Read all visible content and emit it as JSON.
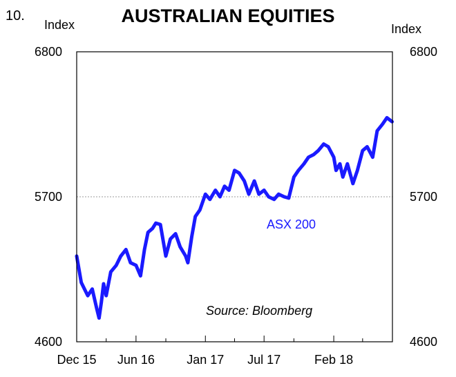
{
  "figure": {
    "number": "10.",
    "title": "AUSTRALIAN EQUITIES",
    "unit_left": "Index",
    "unit_right": "Index",
    "source": "Source: Bloomberg"
  },
  "colors": {
    "series": "#1a1aff",
    "axis": "#000000",
    "gridline": "#9a9a9a"
  },
  "chart_data": {
    "type": "line",
    "title": "AUSTRALIAN EQUITIES",
    "ylabel": "Index",
    "ylim": [
      4600,
      6800
    ],
    "yticks": [
      4600,
      5700,
      6800
    ],
    "xlim": [
      "2015-12-01",
      "2018-08-01"
    ],
    "xtick_labels": [
      "Dec 15",
      "Jun 16",
      "Jan 17",
      "Jul 17",
      "Feb 18"
    ],
    "xticks": [
      "2015-12-01",
      "2016-06-01",
      "2017-01-01",
      "2017-07-01",
      "2018-02-01"
    ],
    "minor_xticks": [
      "2016-03-01",
      "2016-09-01",
      "2017-04-01",
      "2017-10-01",
      "2018-05-01"
    ],
    "grid": "dashed gridline at 5700",
    "legend": "none",
    "series": [
      {
        "name": "ASX 200",
        "x": [
          "2015-12-01",
          "2015-12-15",
          "2016-01-04",
          "2016-01-18",
          "2016-02-01",
          "2016-02-08",
          "2016-02-15",
          "2016-02-22",
          "2016-03-01",
          "2016-03-15",
          "2016-04-01",
          "2016-04-15",
          "2016-05-01",
          "2016-05-15",
          "2016-06-01",
          "2016-06-15",
          "2016-06-27",
          "2016-07-08",
          "2016-07-22",
          "2016-08-01",
          "2016-08-15",
          "2016-09-01",
          "2016-09-15",
          "2016-10-01",
          "2016-10-15",
          "2016-11-01",
          "2016-11-08",
          "2016-11-20",
          "2016-12-01",
          "2016-12-15",
          "2017-01-01",
          "2017-01-15",
          "2017-02-01",
          "2017-02-15",
          "2017-03-01",
          "2017-03-15",
          "2017-04-01",
          "2017-04-15",
          "2017-05-01",
          "2017-05-15",
          "2017-06-01",
          "2017-06-15",
          "2017-07-01",
          "2017-07-15",
          "2017-08-01",
          "2017-08-15",
          "2017-09-01",
          "2017-09-15",
          "2017-10-01",
          "2017-10-15",
          "2017-11-01",
          "2017-11-15",
          "2017-12-01",
          "2017-12-15",
          "2018-01-01",
          "2018-01-15",
          "2018-02-01",
          "2018-02-08",
          "2018-02-20",
          "2018-03-01",
          "2018-03-15",
          "2018-04-01",
          "2018-04-15",
          "2018-05-01",
          "2018-05-15",
          "2018-06-01",
          "2018-06-15",
          "2018-07-01",
          "2018-07-15",
          "2018-07-31"
        ],
        "values": [
          5250,
          5050,
          4950,
          5000,
          4850,
          4780,
          4900,
          5040,
          4950,
          5130,
          5180,
          5250,
          5300,
          5200,
          5180,
          5100,
          5300,
          5430,
          5460,
          5500,
          5490,
          5250,
          5380,
          5420,
          5320,
          5250,
          5200,
          5400,
          5550,
          5600,
          5720,
          5680,
          5750,
          5700,
          5780,
          5750,
          5900,
          5880,
          5820,
          5720,
          5820,
          5720,
          5750,
          5700,
          5680,
          5720,
          5700,
          5690,
          5850,
          5900,
          5950,
          6000,
          6020,
          6050,
          6100,
          6080,
          6000,
          5900,
          5950,
          5850,
          5950,
          5800,
          5900,
          6050,
          6080,
          6000,
          6200,
          6250,
          6300,
          6270
        ]
      }
    ],
    "annotations": [
      "ASX 200",
      "Source: Bloomberg"
    ]
  }
}
